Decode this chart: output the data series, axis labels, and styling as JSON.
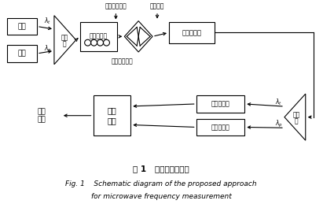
{
  "fig_title_cn": "图 1   瞬时测频原理图",
  "fig_title_en1": "Fig. 1    Schematic diagram of the proposed approach",
  "fig_title_en2": "for microwave frequency measurement",
  "background_color": "#ffffff",
  "box_facecolor": "white",
  "box_edgecolor": "black",
  "text_color": "black",
  "linewidth": 0.8
}
